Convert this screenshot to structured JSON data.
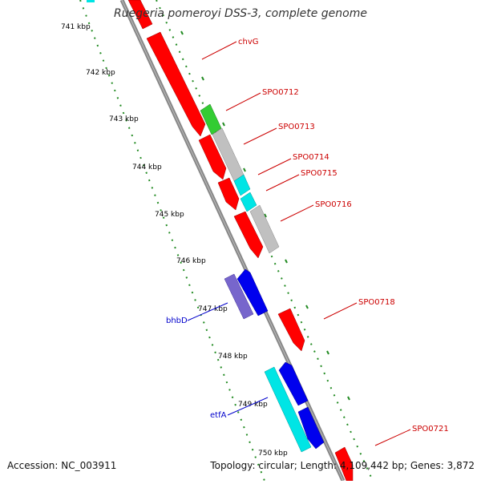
{
  "title": "Ruegeria pomeroyi DSS-3, complete genome",
  "footer": {
    "accession": "Accession: NC_003911",
    "summary": "Topology: circular; Length: 4,109,442 bp; Genes: 3,872"
  },
  "ticks": [
    "741 kbp",
    "742 kbp",
    "743 kbp",
    "744 kbp",
    "745 kbp",
    "746 kbp",
    "747 kbp",
    "748 kbp",
    "749 kbp",
    "750 kbp"
  ],
  "gene_labels_right": [
    "chvG",
    "SPO0712",
    "SPO0713",
    "SPO0714",
    "SPO0715",
    "SPO0716",
    "SPO0718",
    "SPO0721"
  ],
  "gene_labels_left": [
    "bhbD",
    "etfA"
  ],
  "colors": {
    "forward_gene": "#ff0000",
    "reverse_gene": "#0000ee",
    "label_right": "#cc0000",
    "label_left": "#0000cc",
    "backbone": "#888888",
    "gc_dots": "#228b22",
    "green_feature": "#33cc33",
    "gray_feature": "#c0c0c0",
    "cyan_feature": "#00e5e5",
    "purple_feature": "#7766cc"
  }
}
